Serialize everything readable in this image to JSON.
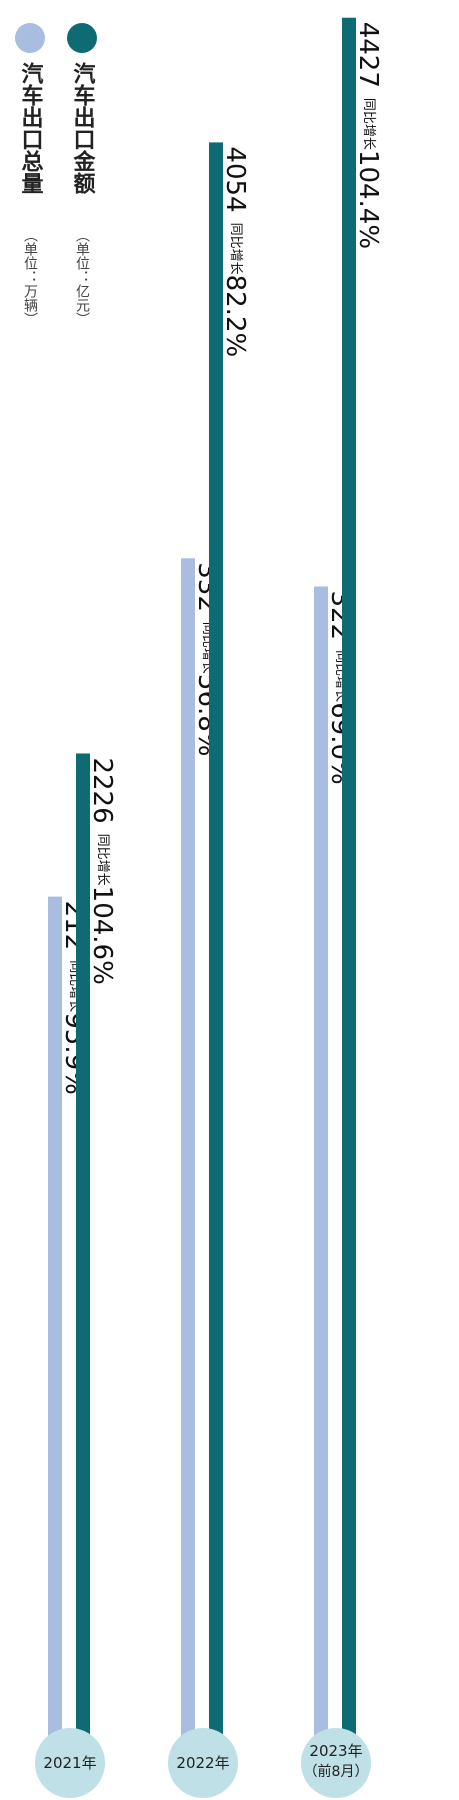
{
  "chart_data": {
    "type": "bar",
    "categories": [
      "2021年",
      "2022年",
      "2023年"
    ],
    "category_notes": [
      null,
      null,
      "（前8月）"
    ],
    "growth_prefix": "同比增长",
    "ylim": [
      -800,
      4480
    ],
    "y2lim": [
      -96,
      530
    ],
    "series": [
      {
        "name": "汽车出口总量",
        "unit": "（单位：万辆）",
        "color": "#a9bde0",
        "axis": "y2",
        "values": [
          212,
          332,
          322
        ],
        "growth_labels": [
          "95.9%",
          "56.8%",
          "69.0%"
        ]
      },
      {
        "name": "汽车出口金额",
        "unit": "（单位：亿元）",
        "color": "#0e6b73",
        "values": [
          2226,
          4054,
          4427
        ],
        "growth_labels": [
          "104.6%",
          "82.2%",
          "104.4%"
        ]
      }
    ]
  }
}
